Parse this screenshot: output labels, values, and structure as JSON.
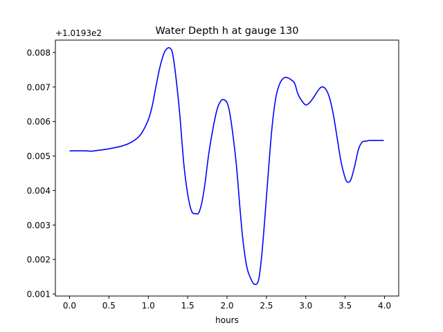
{
  "chart_data": {
    "type": "line",
    "title": "Water Depth h at gauge 130",
    "xlabel": "hours",
    "ylabel": "",
    "offset_label": "+1.0193e2",
    "xlim": [
      -0.18,
      4.18
    ],
    "ylim": [
      0.00094,
      0.00836
    ],
    "xticks": [
      0.0,
      0.5,
      1.0,
      1.5,
      2.0,
      2.5,
      3.0,
      3.5,
      4.0
    ],
    "xtick_labels": [
      "0.0",
      "0.5",
      "1.0",
      "1.5",
      "2.0",
      "2.5",
      "3.0",
      "3.5",
      "4.0"
    ],
    "yticks": [
      0.001,
      0.002,
      0.003,
      0.004,
      0.005,
      0.006,
      0.007,
      0.008
    ],
    "ytick_labels": [
      "0.001",
      "0.002",
      "0.003",
      "0.004",
      "0.005",
      "0.006",
      "0.007",
      "0.008"
    ],
    "grid": false,
    "series": [
      {
        "color": "#0000ff",
        "x": [
          0.0,
          0.1,
          0.2,
          0.27,
          0.35,
          0.45,
          0.55,
          0.65,
          0.75,
          0.85,
          0.92,
          1.0,
          1.05,
          1.1,
          1.15,
          1.2,
          1.24,
          1.28,
          1.31,
          1.35,
          1.4,
          1.45,
          1.5,
          1.55,
          1.6,
          1.64,
          1.68,
          1.72,
          1.77,
          1.83,
          1.88,
          1.93,
          1.97,
          2.0,
          2.03,
          2.07,
          2.12,
          2.16,
          2.2,
          2.25,
          2.3,
          2.35,
          2.4,
          2.44,
          2.48,
          2.52,
          2.57,
          2.62,
          2.67,
          2.72,
          2.77,
          2.82,
          2.86,
          2.9,
          2.95,
          3.0,
          3.05,
          3.1,
          3.15,
          3.2,
          3.25,
          3.3,
          3.35,
          3.4,
          3.44,
          3.48,
          3.52,
          3.57,
          3.62,
          3.67,
          3.72,
          3.77,
          3.8,
          3.85,
          3.9,
          3.95,
          3.99
        ],
        "y": [
          0.00515,
          0.00515,
          0.00515,
          0.00514,
          0.00516,
          0.00519,
          0.00523,
          0.00528,
          0.00536,
          0.0055,
          0.00568,
          0.00605,
          0.00645,
          0.00705,
          0.0076,
          0.00798,
          0.00812,
          0.00812,
          0.00795,
          0.0073,
          0.0062,
          0.0048,
          0.0039,
          0.0034,
          0.00333,
          0.00335,
          0.00365,
          0.0042,
          0.0051,
          0.0059,
          0.0064,
          0.00662,
          0.00662,
          0.00655,
          0.0063,
          0.0057,
          0.0047,
          0.0036,
          0.0026,
          0.0018,
          0.00145,
          0.00128,
          0.0014,
          0.0021,
          0.0032,
          0.0044,
          0.0058,
          0.0067,
          0.0071,
          0.00726,
          0.00727,
          0.0072,
          0.0071,
          0.0068,
          0.0066,
          0.00648,
          0.00655,
          0.0067,
          0.00688,
          0.007,
          0.00695,
          0.0067,
          0.0062,
          0.0055,
          0.00493,
          0.00452,
          0.00426,
          0.0043,
          0.0047,
          0.0052,
          0.00541,
          0.00543,
          0.00545,
          0.00545,
          0.00545,
          0.00545,
          0.00545
        ]
      }
    ]
  }
}
